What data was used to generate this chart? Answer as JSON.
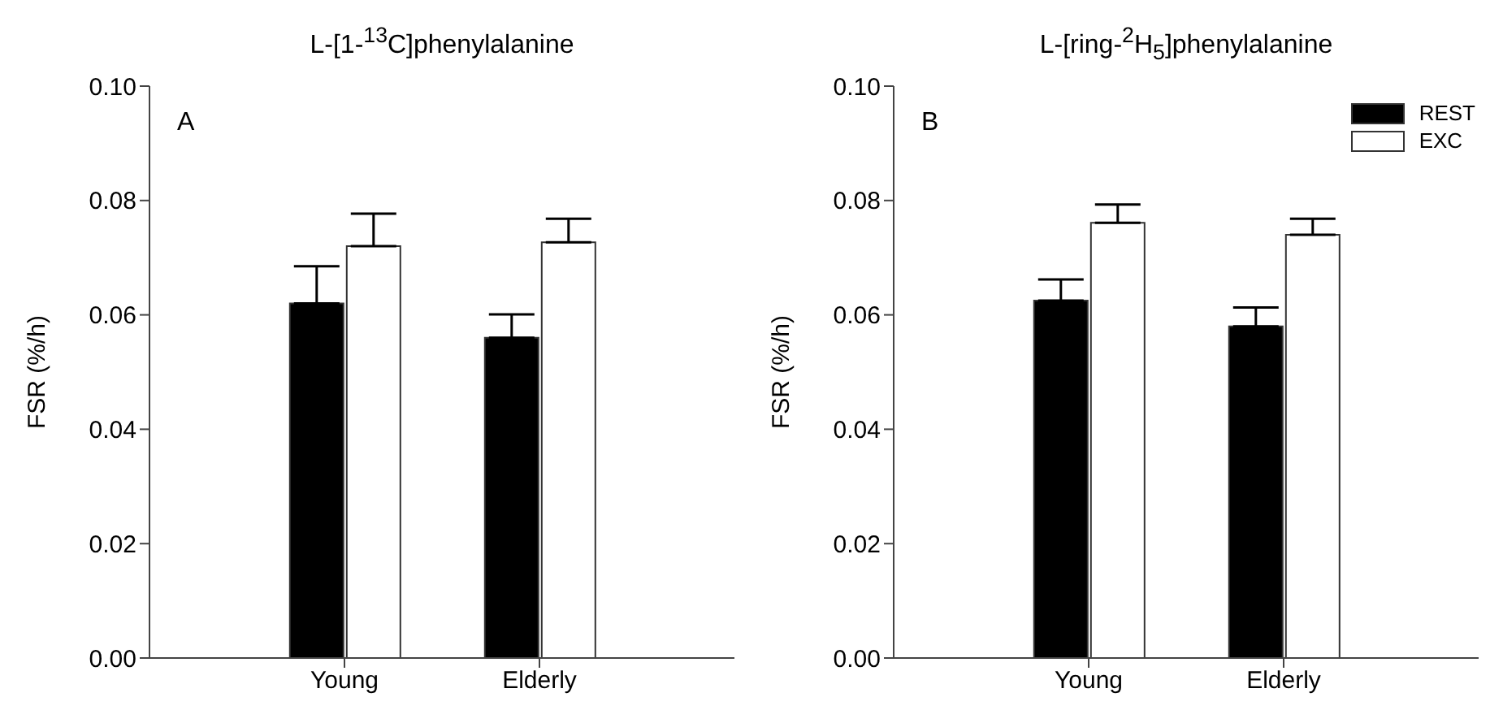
{
  "chart_data": [
    {
      "type": "bar",
      "title": "L-[1-$^{13}$C]phenylalanine",
      "ylabel": "FSR (%/h)",
      "annotations": [
        "A"
      ],
      "categories": [
        "Young",
        "Elderly"
      ],
      "series": [
        {
          "color": "#000000",
          "values": [
            0.062,
            0.056
          ],
          "errors": [
            [
              0.062,
              0.0685
            ],
            [
              0.056,
              0.0601
            ]
          ]
        },
        {
          "color": "#ffffff",
          "values": [
            0.072,
            0.0727
          ],
          "errors": [
            [
              0.072,
              0.0777
            ],
            [
              0.0727,
              0.0768
            ]
          ]
        }
      ],
      "ylim": [
        0,
        0.1
      ],
      "yticks": [
        {
          "value": 0,
          "label": "0.00"
        },
        {
          "value": 0.02,
          "label": "0.02"
        },
        {
          "value": 0.04,
          "label": "0.04"
        },
        {
          "value": 0.06,
          "label": "0.06"
        },
        {
          "value": 0.08,
          "label": "0.08"
        },
        {
          "value": 0.1,
          "label": "0.10"
        }
      ],
      "grid": false,
      "legend": false
    },
    {
      "type": "bar",
      "title": "L-[ring-$^{2}$H$_{5}$]phenylalanine",
      "ylabel": "FSR (%/h)",
      "annotations": [
        "B"
      ],
      "categories": [
        "Young",
        "Elderly"
      ],
      "series": [
        {
          "name": "REST",
          "color": "#000000",
          "values": [
            0.0625,
            0.058
          ],
          "errors": [
            [
              0.0625,
              0.0662
            ],
            [
              0.058,
              0.0613
            ]
          ]
        },
        {
          "name": "EXC",
          "color": "#ffffff",
          "values": [
            0.0761,
            0.074
          ],
          "errors": [
            [
              0.0761,
              0.0793
            ],
            [
              0.074,
              0.0768
            ]
          ]
        }
      ],
      "ylim": [
        0,
        0.1
      ],
      "yticks": [
        {
          "value": 0,
          "label": "0.00"
        },
        {
          "value": 0.02,
          "label": "0.02"
        },
        {
          "value": 0.04,
          "label": "0.04"
        },
        {
          "value": 0.06,
          "label": "0.06"
        },
        {
          "value": 0.08,
          "label": "0.08"
        },
        {
          "value": 0.1,
          "label": "0.10"
        }
      ],
      "grid": false,
      "legend": "top right"
    }
  ]
}
